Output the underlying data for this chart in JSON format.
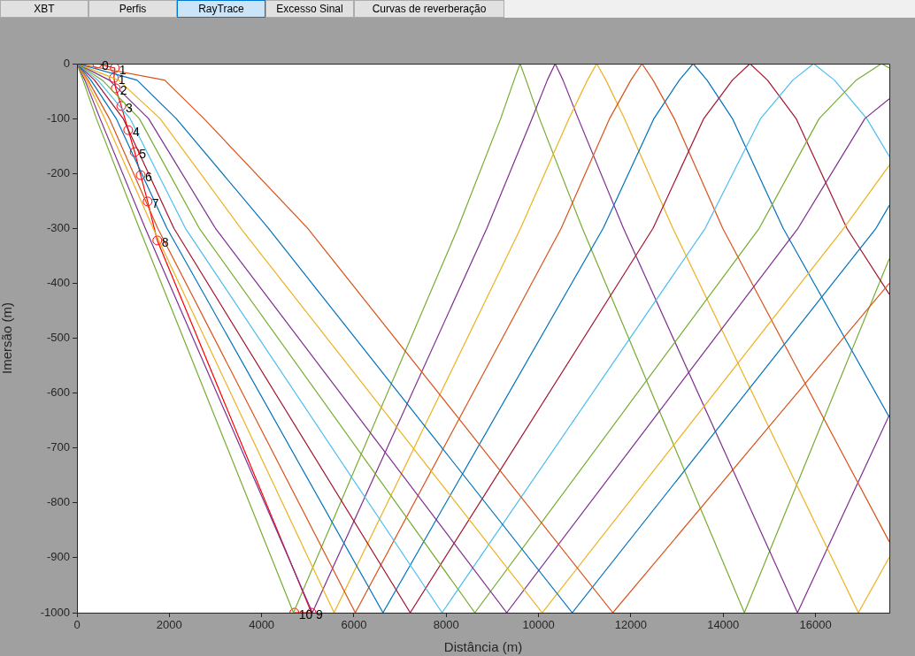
{
  "chart_data": {
    "type": "line",
    "xlabel": "Distância (m)",
    "ylabel": "Imersão (m)",
    "xlim": [
      0,
      17600
    ],
    "xticks": [
      0,
      2000,
      4000,
      6000,
      8000,
      10000,
      12000,
      14000,
      16000
    ],
    "ylim": [
      -1000,
      0
    ],
    "yticks": [
      -1000,
      -900,
      -800,
      -700,
      -600,
      -500,
      -400,
      -300,
      -200,
      -100,
      0
    ],
    "grid": false,
    "legend": false,
    "marker": "none",
    "line_style": "solid",
    "series": [
      {
        "color": "#d95319",
        "x": [
          0,
          1900,
          2750,
          5000,
          11610,
          17600
        ],
        "values": [
          0,
          -30,
          -100,
          -300,
          -1000,
          -400
        ]
      },
      {
        "color": "#0072bd",
        "x": [
          0,
          1300,
          2150,
          4150,
          10730,
          17310,
          17600
        ],
        "values": [
          0,
          -30,
          -100,
          -300,
          -1000,
          -300,
          -258
        ]
      },
      {
        "color": "#edb120",
        "x": [
          0,
          900,
          1800,
          3550,
          10080,
          16610,
          17600
        ],
        "values": [
          0,
          -30,
          -100,
          -300,
          -1000,
          -300,
          -185
        ]
      },
      {
        "color": "#7e2f8e",
        "x": [
          0,
          700,
          1550,
          3000,
          9310,
          15620,
          17070,
          17600
        ],
        "values": [
          0,
          -30,
          -100,
          -300,
          -1000,
          -300,
          -100,
          -64
        ]
      },
      {
        "color": "#77ac30",
        "x": [
          0,
          550,
          1350,
          2650,
          8620,
          14780,
          16080,
          16880,
          17430,
          17600
        ],
        "values": [
          0,
          -30,
          -100,
          -300,
          -1000,
          -300,
          -100,
          -30,
          0,
          -8
        ]
      },
      {
        "color": "#4dbeee",
        "x": [
          0,
          450,
          1150,
          2350,
          7910,
          13610,
          14810,
          15510,
          15960,
          16410,
          17110,
          17600
        ],
        "values": [
          0,
          -30,
          -100,
          -300,
          -1000,
          -300,
          -100,
          -30,
          0,
          -30,
          -100,
          -169
        ]
      },
      {
        "color": "#a2142f",
        "x": [
          0,
          380,
          1000,
          2100,
          7220,
          12480,
          13580,
          14200,
          14580,
          14960,
          15580,
          16680,
          17600
        ],
        "values": [
          0,
          -30,
          -100,
          -300,
          -1000,
          -300,
          -100,
          -30,
          0,
          -30,
          -100,
          -300,
          -420
        ]
      },
      {
        "color": "#0072bd",
        "x": [
          0,
          300,
          850,
          1950,
          6630,
          11400,
          12500,
          13050,
          13350,
          13650,
          14200,
          15300,
          17600
        ],
        "values": [
          0,
          -30,
          -100,
          -300,
          -1000,
          -300,
          -100,
          -30,
          0,
          -30,
          -100,
          -300,
          -644
        ]
      },
      {
        "color": "#d95319",
        "x": [
          0,
          240,
          700,
          1750,
          6030,
          10490,
          11540,
          12000,
          12240,
          12480,
          12940,
          13990,
          17600
        ],
        "values": [
          0,
          -30,
          -100,
          -300,
          -1000,
          -300,
          -100,
          -30,
          0,
          -30,
          -100,
          -300,
          -871
        ]
      },
      {
        "color": "#edb120",
        "x": [
          0,
          200,
          600,
          1650,
          5570,
          9610,
          10660,
          11060,
          11260,
          11460,
          11860,
          12910,
          16930,
          17600
        ],
        "values": [
          0,
          -30,
          -100,
          -300,
          -1000,
          -300,
          -100,
          -30,
          0,
          -30,
          -100,
          -300,
          -1000,
          -899
        ]
      },
      {
        "color": "#7e2f8e",
        "x": [
          0,
          170,
          500,
          1480,
          5100,
          8880,
          9860,
          10190,
          10360,
          10530,
          10860,
          11840,
          15610,
          17600
        ],
        "values": [
          0,
          -30,
          -100,
          -300,
          -1000,
          -300,
          -100,
          -30,
          0,
          -30,
          -100,
          -300,
          -1000,
          -640
        ]
      },
      {
        "color": "#77ac30",
        "x": [
          0,
          130,
          420,
          1350,
          4690,
          8250,
          9180,
          9470,
          9600,
          9730,
          10020,
          10950,
          14460,
          17600
        ],
        "values": [
          0,
          -30,
          -100,
          -300,
          -1000,
          -300,
          -100,
          -30,
          0,
          -30,
          -100,
          -300,
          -1000,
          -355
        ]
      },
      {
        "color": "#ff0000",
        "marker": "circle",
        "x": [
          440,
          820,
          800,
          840,
          960,
          1110,
          1250,
          1380,
          1530,
          1740,
          5080,
          4710
        ],
        "values": [
          0,
          -8,
          -26,
          -45,
          -77,
          -121,
          -161,
          -203,
          -251,
          -322,
          -1000,
          -1000
        ]
      }
    ],
    "annotations": [
      "XBT",
      "Perfis",
      "RayTrace",
      "Excesso Sinal",
      "Curvas de reverberação",
      {
        "text": "0",
        "x": 440,
        "y": 0
      },
      {
        "text": "1",
        "x": 820,
        "y": -8
      },
      {
        "text": "1",
        "x": 800,
        "y": -26
      },
      {
        "text": "2",
        "x": 840,
        "y": -45
      },
      {
        "text": "3",
        "x": 960,
        "y": -77
      },
      {
        "text": "4",
        "x": 1110,
        "y": -121
      },
      {
        "text": "5",
        "x": 1250,
        "y": -161
      },
      {
        "text": "6",
        "x": 1380,
        "y": -203
      },
      {
        "text": "7",
        "x": 1530,
        "y": -251
      },
      {
        "text": "8",
        "x": 1740,
        "y": -322
      },
      {
        "text": "9",
        "x": 5080,
        "y": -1000
      },
      {
        "text": "10",
        "x": 4710,
        "y": -1000
      }
    ]
  }
}
